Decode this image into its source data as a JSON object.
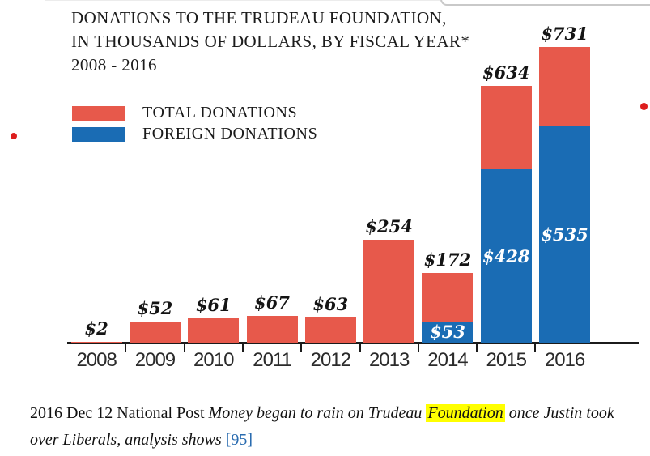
{
  "decorations": {
    "bullet_color": "#dd1e1e",
    "bullets": [
      {
        "side": "left"
      },
      {
        "side": "right"
      }
    ]
  },
  "chart": {
    "title_line1": "DONATIONS TO THE TRUDEAU FOUNDATION,",
    "title_line2": "IN THOUSANDS OF DOLLARS, BY FISCAL YEAR*",
    "title_line3": "2008 - 2016"
  },
  "chart_data": {
    "type": "bar",
    "subtype": "total-with-foreign-overlay",
    "title": "DONATIONS TO THE TRUDEAU FOUNDATION, IN THOUSANDS OF DOLLARS, BY FISCAL YEAR* 2008 - 2016",
    "unit": "thousands of dollars",
    "categories": [
      "2008",
      "2009",
      "2010",
      "2011",
      "2012",
      "2013",
      "2014",
      "2015",
      "2016"
    ],
    "series": [
      {
        "name": "TOTAL DONATIONS",
        "color": "#e7594b",
        "values": [
          2,
          52,
          61,
          67,
          63,
          254,
          172,
          634,
          731
        ]
      },
      {
        "name": "FOREIGN DONATIONS",
        "color": "#1a6cb4",
        "values": [
          0,
          0,
          0,
          0,
          0,
          0,
          53,
          428,
          535
        ]
      }
    ],
    "total_value_labels": [
      "$2",
      "$52",
      "$61",
      "$67",
      "$63",
      "$254",
      "$172",
      "$634",
      "$731"
    ],
    "foreign_value_labels": [
      "",
      "",
      "",
      "",
      "",
      "",
      "$53",
      "$428",
      "$535"
    ],
    "ylim": [
      0,
      750
    ],
    "grid": false,
    "legend_position": "top-left",
    "axis_color": "#1b1b1b"
  },
  "caption": {
    "line1": [
      {
        "text": "2016 Dec 12 National Post ",
        "style": "regular"
      },
      {
        "text": "Money began to rain on Trudeau ",
        "style": "italic"
      },
      {
        "text": "Foundation",
        "style": "highlight"
      },
      {
        "text": " once Justin took",
        "style": "italic"
      }
    ],
    "line2": [
      {
        "text": "over Liberals, analysis shows ",
        "style": "italic"
      },
      {
        "text": "[95]",
        "style": "link"
      }
    ]
  }
}
